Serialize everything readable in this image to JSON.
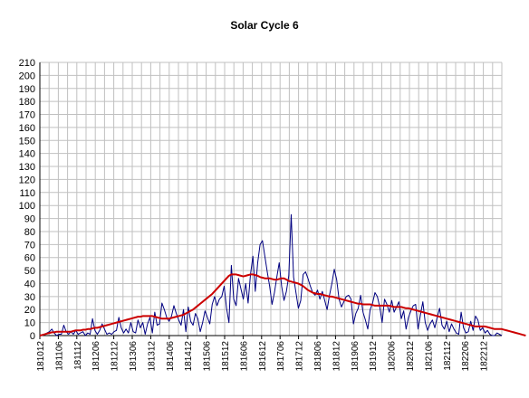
{
  "chart_data": {
    "type": "line",
    "title": "Solar Cycle 6",
    "xlabel": "",
    "ylabel": "",
    "ylim": [
      0,
      210
    ],
    "yticks": [
      0,
      10,
      20,
      30,
      40,
      50,
      60,
      70,
      80,
      90,
      100,
      110,
      120,
      130,
      140,
      150,
      160,
      170,
      180,
      190,
      200,
      210
    ],
    "x_tick_labels": [
      "181012",
      "181106",
      "181112",
      "181206",
      "181212",
      "181306",
      "181312",
      "181406",
      "181412",
      "181506",
      "181512",
      "181606",
      "181612",
      "181706",
      "181712",
      "181806",
      "181812",
      "181906",
      "181912",
      "182006",
      "182012",
      "182106",
      "182112",
      "182206",
      "182212"
    ],
    "grid": true,
    "legend": "none",
    "colors": {
      "monthly": "#000080",
      "smoothed": "#cc0000",
      "grid": "#c0c0c0"
    },
    "series": [
      {
        "key": "monthly",
        "values": [
          0,
          0,
          1,
          2,
          3,
          5,
          2,
          0,
          1,
          1,
          8,
          3,
          1,
          3,
          1,
          4,
          1,
          2,
          3,
          0,
          2,
          1,
          13,
          4,
          1,
          4,
          9,
          5,
          1,
          2,
          1,
          3,
          4,
          14,
          6,
          2,
          5,
          2,
          10,
          3,
          2,
          12,
          6,
          10,
          1,
          9,
          14,
          2,
          18,
          8,
          9,
          25,
          20,
          14,
          11,
          15,
          23,
          17,
          12,
          8,
          20,
          3,
          22,
          11,
          8,
          17,
          13,
          3,
          10,
          19,
          14,
          9,
          24,
          30,
          23,
          28,
          30,
          38,
          21,
          10,
          54,
          28,
          23,
          44,
          36,
          28,
          40,
          25,
          47,
          61,
          34,
          56,
          70,
          73,
          61,
          49,
          38,
          24,
          33,
          45,
          56,
          38,
          27,
          34,
          46,
          93,
          45,
          33,
          21,
          27,
          47,
          49,
          44,
          38,
          33,
          31,
          35,
          28,
          34,
          27,
          20,
          31,
          40,
          51,
          43,
          28,
          22,
          26,
          30,
          31,
          28,
          9,
          17,
          21,
          31,
          18,
          12,
          5,
          20,
          25,
          33,
          30,
          22,
          10,
          28,
          24,
          18,
          27,
          18,
          22,
          26,
          13,
          19,
          5,
          14,
          19,
          23,
          24,
          5,
          16,
          26,
          10,
          4,
          9,
          12,
          6,
          14,
          21,
          8,
          5,
          11,
          3,
          9,
          5,
          2,
          1,
          18,
          6,
          2,
          3,
          11,
          4,
          15,
          12,
          4,
          6,
          2,
          4,
          1,
          0,
          0,
          2,
          1,
          0
        ]
      },
      {
        "key": "smoothed",
        "values": [
          0,
          0.5,
          1,
          1.5,
          2,
          2.5,
          2.5,
          3,
          3,
          3,
          3,
          3,
          3,
          3,
          3.5,
          4,
          4,
          4,
          4.5,
          4.5,
          5,
          5,
          5.5,
          6,
          6,
          6.5,
          7,
          7.5,
          8,
          8.5,
          9,
          9.5,
          10,
          10.5,
          11,
          11.5,
          12,
          12.5,
          13,
          13.5,
          14,
          14.5,
          14.5,
          15,
          15,
          15,
          15,
          15,
          14.5,
          14,
          13.5,
          13,
          13,
          13,
          13,
          13.5,
          14,
          14.5,
          15,
          15.5,
          16,
          17,
          18,
          19,
          20,
          21.5,
          23,
          24.5,
          26,
          27.5,
          29,
          30.5,
          32,
          34,
          36,
          38,
          40,
          42,
          44,
          46,
          47,
          47,
          47,
          46.5,
          46,
          45.5,
          46,
          46.5,
          47,
          47,
          46.5,
          46,
          45,
          44.5,
          44,
          44,
          44,
          43.5,
          43,
          43,
          43.5,
          44,
          44,
          43,
          42,
          41.5,
          41,
          40.5,
          40,
          39,
          38,
          36.5,
          35,
          34,
          33,
          32.5,
          32,
          32,
          31.5,
          31,
          30.5,
          30,
          30,
          29.5,
          29,
          28.5,
          28,
          27.5,
          27,
          26.5,
          26,
          25.5,
          25,
          24.5,
          24.5,
          24,
          24,
          24,
          24,
          23.5,
          23,
          23,
          23,
          23,
          23,
          23,
          23,
          22.5,
          22,
          22,
          22,
          22,
          21.5,
          21,
          21,
          20.5,
          20,
          19.5,
          19,
          18.5,
          18,
          17.5,
          17,
          16.5,
          16,
          15.5,
          15,
          14.5,
          14,
          13.5,
          13,
          12.5,
          12,
          11.5,
          11,
          10.5,
          10,
          9.5,
          9,
          8.5,
          8,
          7.5,
          7,
          7,
          7,
          7,
          7,
          6.5,
          6,
          5.5,
          5,
          5,
          5,
          5,
          4.5,
          4,
          3.5,
          3,
          2.5,
          2,
          1.5,
          1,
          0.5,
          0
        ]
      }
    ]
  }
}
